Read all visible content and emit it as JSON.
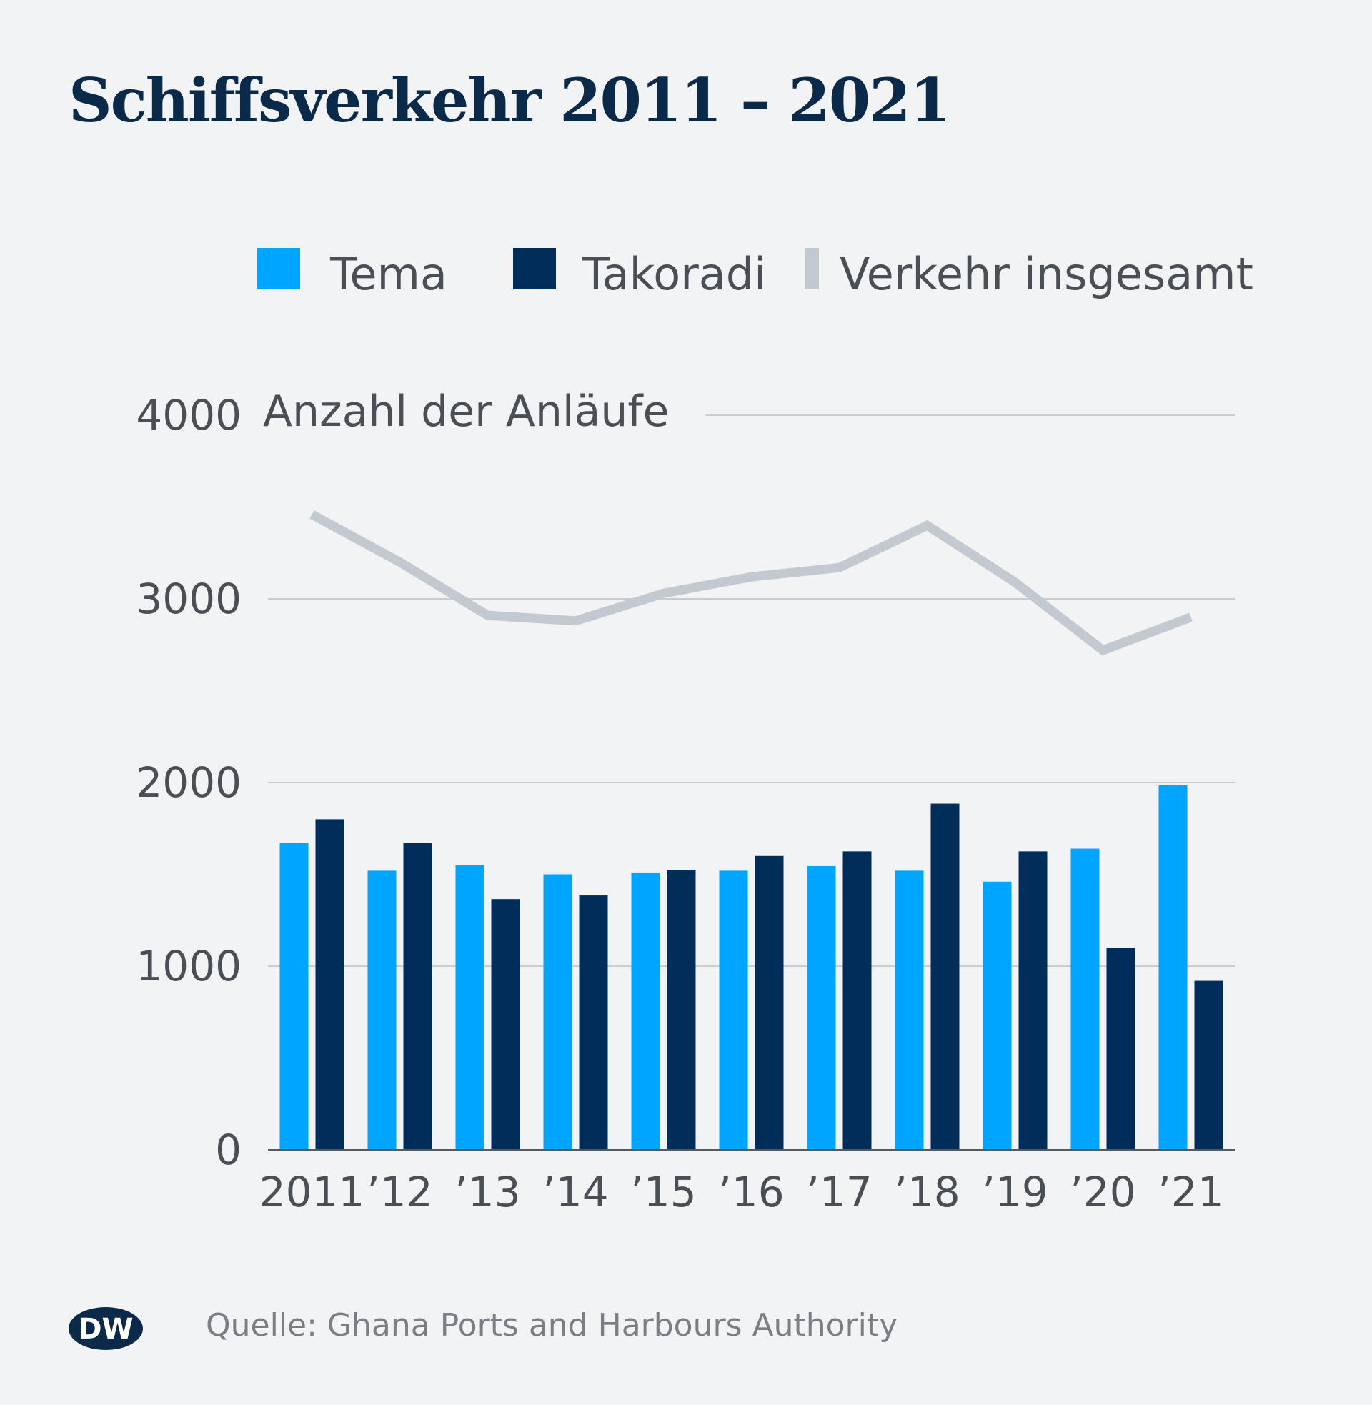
{
  "chart_data": {
    "type": "bar",
    "title": "Schiffsverkehr 2011 – 2021",
    "ylabel": "Anzahl der Anläufe",
    "xlabel": "",
    "ylim": [
      0,
      4000
    ],
    "yticks": [
      0,
      1000,
      2000,
      3000,
      4000
    ],
    "categories": [
      "2011",
      "’12",
      "’13",
      "’14",
      "’15",
      "’16",
      "’17",
      "’18",
      "’19",
      "’20",
      "’21"
    ],
    "series": [
      {
        "name": "Tema",
        "type": "bar",
        "color": "#00a5ff",
        "values": [
          1670,
          1520,
          1550,
          1500,
          1510,
          1520,
          1545,
          1520,
          1460,
          1640,
          1985
        ]
      },
      {
        "name": "Takoradi",
        "type": "bar",
        "color": "#002d5a",
        "values": [
          1800,
          1670,
          1365,
          1385,
          1525,
          1600,
          1625,
          1885,
          1625,
          1100,
          920
        ]
      },
      {
        "name": "Verkehr insgesamt",
        "type": "line",
        "color": "#c2c9d0",
        "values": [
          3460,
          3200,
          2910,
          2880,
          3030,
          3120,
          3170,
          3400,
          3090,
          2720,
          2900
        ]
      }
    ],
    "legend_position": "top",
    "grid": true
  },
  "source": "Quelle: Ghana Ports and Harbours Authority",
  "logo": {
    "text": "DW"
  }
}
